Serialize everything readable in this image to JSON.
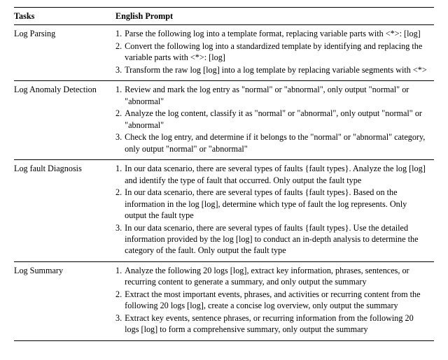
{
  "headers": {
    "tasks": "Tasks",
    "prompt": "English Prompt"
  },
  "rows": [
    {
      "task": "Log Parsing",
      "prompts": [
        {
          "n": "1.",
          "text": "Parse the following log into a template format, replacing variable parts with <*>: [log]"
        },
        {
          "n": "2.",
          "text": "Convert the following log into a standardized template by identifying and replacing the variable parts with <*>: [log]"
        },
        {
          "n": "3.",
          "text": "Transform the raw log [log] into a log template by replacing variable segments with <*>"
        }
      ]
    },
    {
      "task": "Log Anomaly Detection",
      "prompts": [
        {
          "n": "1.",
          "text": "Review and mark the log entry as \"normal\" or \"abnormal\", only output \"normal\" or \"abnormal\""
        },
        {
          "n": "2.",
          "text": "Analyze the log content, classify it as \"normal\" or \"abnormal\", only output \"normal\" or \"abnormal\""
        },
        {
          "n": "3.",
          "text": "Check the log entry, and determine if it belongs to the \"normal\" or \"abnormal\" category, only output \"normal\" or \"abnormal\""
        }
      ]
    },
    {
      "task": "Log fault Diagnosis",
      "prompts": [
        {
          "n": "1.",
          "text": "In our data scenario, there are several types of faults {fault types}. Analyze the log [log] and identify the type of fault that occurred. Only output the fault type"
        },
        {
          "n": "2.",
          "text": "In our data scenario, there are several types of faults {fault types}. Based on the information in the log [log], determine which type of fault the log represents. Only output the fault type"
        },
        {
          "n": "3.",
          "text": "In our data scenario, there are several types of faults {fault types}. Use the detailed information provided by the log [log] to conduct an in-depth analysis to determine the category of the fault. Only output the fault type"
        }
      ]
    },
    {
      "task": "Log Summary",
      "prompts": [
        {
          "n": "1.",
          "text": "Analyze the following 20 logs [log], extract key information, phrases, sentences, or recurring content to generate a summary, and only output the summary"
        },
        {
          "n": "2.",
          "text": "Extract the most important events, phrases, and activities or recurring content from the following 20 logs [log], create a concise log overview, only output the summary"
        },
        {
          "n": "3.",
          "text": "Extract key events, sentence phrases, or recurring information from the following 20 logs [log] to form a comprehensive summary, only output the summary"
        }
      ]
    }
  ]
}
